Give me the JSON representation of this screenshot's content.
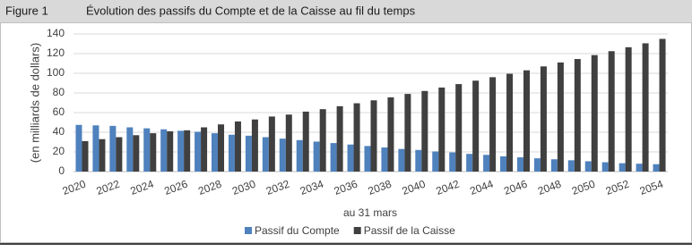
{
  "figure": "Figure 1",
  "chart_data": {
    "type": "bar",
    "title": "Évolution des passifs du Compte et de la Caisse au fil du temps",
    "x_label": "au 31 mars",
    "y_label": "(en milliards de dollars)",
    "categories": [
      "2020",
      null,
      "2022",
      null,
      "2024",
      null,
      "2026",
      null,
      "2028",
      null,
      "2030",
      null,
      "2032",
      null,
      "2034",
      null,
      "2036",
      null,
      "2038",
      null,
      "2040",
      null,
      "2042",
      null,
      "2044",
      null,
      "2046",
      null,
      "2048",
      null,
      "2050",
      null,
      "2052",
      null,
      "2054"
    ],
    "series": [
      {
        "name": "Passif du Compte",
        "color": "#4f81bd",
        "values": [
          47.5,
          47,
          46.5,
          45,
          44,
          43,
          41.5,
          40.5,
          39,
          37.5,
          36.5,
          35,
          33.5,
          32,
          30.5,
          29,
          27.5,
          26,
          24.5,
          23,
          22,
          20.5,
          19.5,
          18,
          17,
          15.5,
          14.5,
          13.5,
          12.5,
          11.5,
          10.5,
          9.5,
          8.5,
          8,
          7.5
        ]
      },
      {
        "name": "Passif de la Caisse",
        "color": "#404040",
        "values": [
          31,
          33,
          35,
          37,
          39,
          41,
          42,
          45,
          48,
          51,
          53,
          56,
          58,
          61,
          63.5,
          66.5,
          69.5,
          72.5,
          75.5,
          79,
          82,
          85.5,
          89,
          92.5,
          96,
          99.5,
          103,
          107,
          111,
          114.5,
          118.5,
          122.5,
          126.5,
          130.5,
          135
        ]
      }
    ],
    "ylim": [
      0,
      140
    ],
    "yticks": [
      0,
      20,
      40,
      60,
      80,
      100,
      120,
      140
    ],
    "grid": true,
    "legend": "bottom"
  }
}
